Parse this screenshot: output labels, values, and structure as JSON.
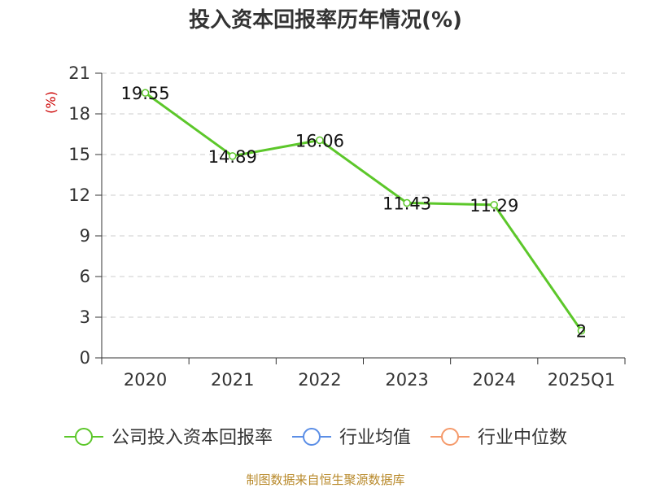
{
  "chart_data": {
    "type": "line",
    "title": "投入资本回报率历年情况(%)",
    "ylabel": "(%)",
    "xlabel": "",
    "categories": [
      "2020",
      "2021",
      "2022",
      "2023",
      "2024",
      "2025Q1"
    ],
    "series": [
      {
        "name": "公司投入资本回报率",
        "values": [
          19.55,
          14.89,
          16.06,
          11.43,
          11.29,
          2
        ],
        "value_labels": [
          "19.55",
          "14.89",
          "16.06",
          "11.43",
          "11.29",
          "2"
        ],
        "color": "#5cc72a"
      }
    ],
    "ylim": [
      0,
      21
    ],
    "yticks": [
      0,
      3,
      6,
      9,
      12,
      15,
      18,
      21
    ],
    "grid": true,
    "legend": {
      "placement": "bottom",
      "items": [
        {
          "name": "公司投入资本回报率",
          "color": "#5cc72a"
        },
        {
          "name": "行业均值",
          "color": "#5b8ee6"
        },
        {
          "name": "行业中位数",
          "color": "#f59a6b"
        }
      ]
    },
    "source": "制图数据来自恒生聚源数据库"
  }
}
